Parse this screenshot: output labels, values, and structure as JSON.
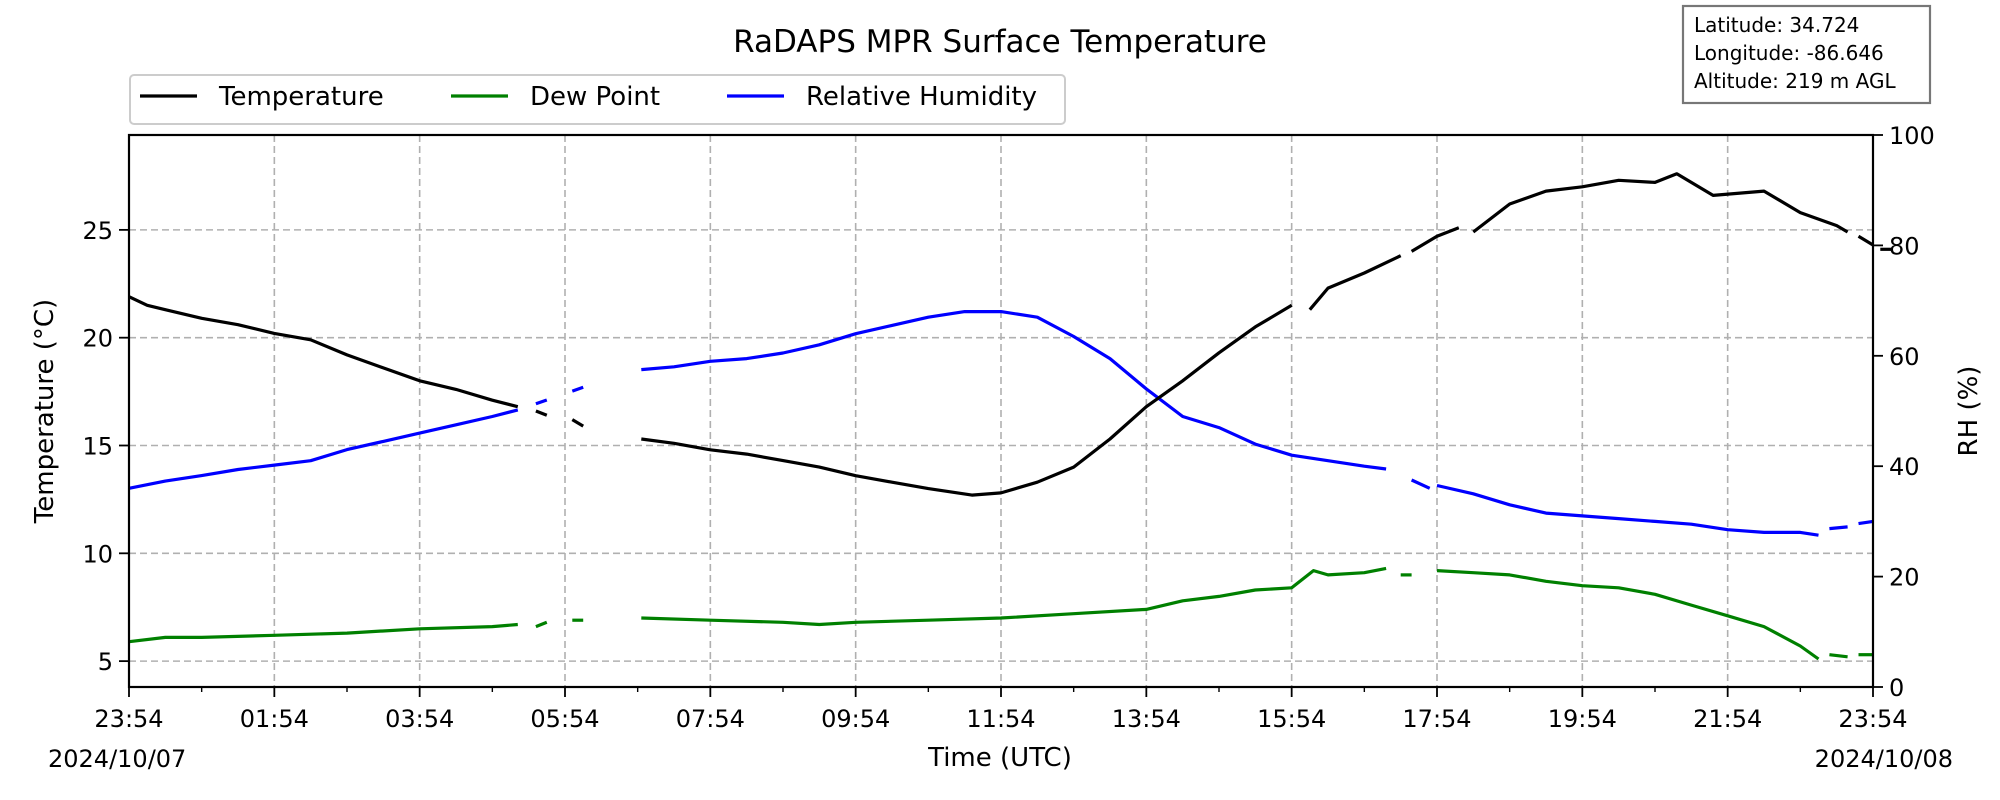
{
  "chart_data": {
    "type": "line",
    "title": "RaDAPS MPR Surface Temperature",
    "xlabel": "Time (UTC)",
    "ylabel_left": "Temperature (°C)",
    "ylabel_right": "RH (%)",
    "x_ticks": [
      "23:54",
      "01:54",
      "03:54",
      "05:54",
      "07:54",
      "09:54",
      "11:54",
      "13:54",
      "15:54",
      "17:54",
      "19:54",
      "21:54",
      "23:54"
    ],
    "x_range_hours": [
      0,
      24
    ],
    "date_start": "2024/10/07",
    "date_end": "2024/10/08",
    "y_left_ticks": [
      "5",
      "10",
      "15",
      "20",
      "25"
    ],
    "y_left_range": [
      3.8,
      29.4
    ],
    "y_right_ticks": [
      "0",
      "20",
      "40",
      "60",
      "80",
      "100"
    ],
    "y_right_range": [
      0,
      100
    ],
    "grid": true,
    "legend_position": "top-left",
    "station_info": {
      "latitude": "Latitude: 34.724",
      "longitude": "Longitude: -86.646",
      "altitude": "Altitude: 219 m AGL"
    },
    "series": [
      {
        "name": "Temperature",
        "axis": "left",
        "color": "#000000",
        "segments": [
          [
            [
              0.0,
              21.9
            ],
            [
              0.25,
              21.5
            ],
            [
              0.5,
              21.3
            ],
            [
              1.0,
              20.9
            ],
            [
              1.5,
              20.6
            ],
            [
              2.0,
              20.2
            ],
            [
              2.5,
              19.9
            ],
            [
              3.0,
              19.2
            ],
            [
              3.5,
              18.6
            ],
            [
              4.0,
              18.0
            ],
            [
              4.5,
              17.6
            ],
            [
              5.0,
              17.1
            ],
            [
              5.35,
              16.8
            ]
          ],
          [
            [
              5.6,
              16.6
            ],
            [
              5.75,
              16.4
            ]
          ],
          [
            [
              6.1,
              16.2
            ],
            [
              6.25,
              15.9
            ]
          ],
          [
            [
              7.05,
              15.3
            ],
            [
              7.5,
              15.1
            ],
            [
              8.0,
              14.8
            ],
            [
              8.5,
              14.6
            ],
            [
              9.0,
              14.3
            ],
            [
              9.5,
              14.0
            ],
            [
              10.0,
              13.6
            ],
            [
              10.5,
              13.3
            ],
            [
              11.0,
              13.0
            ],
            [
              11.6,
              12.7
            ],
            [
              12.0,
              12.8
            ],
            [
              12.5,
              13.3
            ],
            [
              13.0,
              14.0
            ],
            [
              13.5,
              15.3
            ],
            [
              14.0,
              16.8
            ],
            [
              14.5,
              18.0
            ],
            [
              15.0,
              19.3
            ],
            [
              15.5,
              20.5
            ],
            [
              16.0,
              21.5
            ]
          ],
          [
            [
              16.25,
              21.3
            ],
            [
              16.5,
              22.3
            ],
            [
              17.0,
              23.0
            ],
            [
              17.5,
              23.8
            ]
          ],
          [
            [
              17.65,
              24.0
            ],
            [
              18.0,
              24.7
            ],
            [
              18.3,
              25.1
            ]
          ],
          [
            [
              18.5,
              24.9
            ],
            [
              19.0,
              26.2
            ],
            [
              19.5,
              26.8
            ],
            [
              20.0,
              27.0
            ],
            [
              20.5,
              27.3
            ],
            [
              21.0,
              27.2
            ],
            [
              21.3,
              27.6
            ],
            [
              21.8,
              26.6
            ],
            [
              22.5,
              26.8
            ],
            [
              23.0,
              25.8
            ],
            [
              23.5,
              25.2
            ],
            [
              23.65,
              24.9
            ]
          ],
          [
            [
              23.8,
              24.7
            ],
            [
              24.0,
              24.3
            ]
          ],
          [
            [
              24.1,
              24.1
            ],
            [
              24.25,
              24.1
            ]
          ]
        ]
      },
      {
        "name": "Dew Point",
        "axis": "left",
        "color": "#008000",
        "segments": [
          [
            [
              0.0,
              5.9
            ],
            [
              0.5,
              6.1
            ],
            [
              1.0,
              6.1
            ],
            [
              2.0,
              6.2
            ],
            [
              3.0,
              6.3
            ],
            [
              4.0,
              6.5
            ],
            [
              5.0,
              6.6
            ],
            [
              5.35,
              6.7
            ]
          ],
          [
            [
              5.6,
              6.6
            ],
            [
              5.75,
              6.8
            ]
          ],
          [
            [
              6.1,
              6.9
            ],
            [
              6.25,
              6.9
            ]
          ],
          [
            [
              7.05,
              7.0
            ],
            [
              8.0,
              6.9
            ],
            [
              9.0,
              6.8
            ],
            [
              9.5,
              6.7
            ],
            [
              10.0,
              6.8
            ],
            [
              11.0,
              6.9
            ],
            [
              12.0,
              7.0
            ],
            [
              13.0,
              7.2
            ],
            [
              14.0,
              7.4
            ],
            [
              14.5,
              7.8
            ],
            [
              15.0,
              8.0
            ],
            [
              15.5,
              8.3
            ],
            [
              16.0,
              8.4
            ],
            [
              16.3,
              9.2
            ],
            [
              16.5,
              9.0
            ],
            [
              17.0,
              9.1
            ],
            [
              17.3,
              9.3
            ]
          ],
          [
            [
              17.5,
              9.0
            ],
            [
              17.65,
              9.0
            ]
          ],
          [
            [
              18.0,
              9.2
            ],
            [
              18.5,
              9.1
            ],
            [
              19.0,
              9.0
            ],
            [
              19.5,
              8.7
            ],
            [
              20.0,
              8.5
            ],
            [
              20.5,
              8.4
            ],
            [
              21.0,
              8.1
            ],
            [
              21.5,
              7.6
            ],
            [
              22.0,
              7.1
            ],
            [
              22.5,
              6.6
            ],
            [
              23.0,
              5.7
            ],
            [
              23.25,
              5.1
            ]
          ],
          [
            [
              23.4,
              5.3
            ],
            [
              23.65,
              5.2
            ]
          ],
          [
            [
              23.8,
              5.3
            ],
            [
              24.0,
              5.3
            ]
          ]
        ]
      },
      {
        "name": "Relative Humidity",
        "axis": "right",
        "color": "#0000ff",
        "segments": [
          [
            [
              0.0,
              36.0
            ],
            [
              0.5,
              37.3
            ],
            [
              1.0,
              38.3
            ],
            [
              1.5,
              39.4
            ],
            [
              2.0,
              40.2
            ],
            [
              2.5,
              41.0
            ],
            [
              3.0,
              43.0
            ],
            [
              3.5,
              44.5
            ],
            [
              4.0,
              46.0
            ],
            [
              4.5,
              47.5
            ],
            [
              5.0,
              49.0
            ],
            [
              5.35,
              50.2
            ]
          ],
          [
            [
              5.6,
              51.3
            ],
            [
              5.75,
              52.0
            ]
          ],
          [
            [
              6.1,
              53.6
            ],
            [
              6.25,
              54.3
            ]
          ],
          [
            [
              7.05,
              57.5
            ],
            [
              7.5,
              58.0
            ],
            [
              8.0,
              59.0
            ],
            [
              8.5,
              59.5
            ],
            [
              9.0,
              60.5
            ],
            [
              9.5,
              62.0
            ],
            [
              10.0,
              64.0
            ],
            [
              10.5,
              65.5
            ],
            [
              11.0,
              67.0
            ],
            [
              11.5,
              68.0
            ],
            [
              12.0,
              68.0
            ],
            [
              12.5,
              67.0
            ],
            [
              13.0,
              63.5
            ],
            [
              13.5,
              59.5
            ],
            [
              14.0,
              54.0
            ],
            [
              14.5,
              49.0
            ],
            [
              15.0,
              47.0
            ],
            [
              15.5,
              44.0
            ],
            [
              16.0,
              42.0
            ],
            [
              16.5,
              41.0
            ],
            [
              17.0,
              40.0
            ],
            [
              17.3,
              39.5
            ]
          ],
          [
            [
              17.65,
              37.5
            ],
            [
              17.9,
              36.0
            ]
          ],
          [
            [
              18.0,
              36.5
            ],
            [
              18.5,
              35.0
            ],
            [
              19.0,
              33.0
            ],
            [
              19.5,
              31.5
            ],
            [
              20.0,
              31.0
            ],
            [
              20.5,
              30.5
            ],
            [
              21.0,
              30.0
            ],
            [
              21.5,
              29.5
            ],
            [
              22.0,
              28.5
            ],
            [
              22.5,
              28.0
            ],
            [
              23.0,
              28.0
            ],
            [
              23.25,
              27.5
            ]
          ],
          [
            [
              23.4,
              28.7
            ],
            [
              23.65,
              29.0
            ]
          ],
          [
            [
              23.8,
              29.6
            ],
            [
              24.0,
              30.0
            ]
          ]
        ]
      }
    ]
  }
}
